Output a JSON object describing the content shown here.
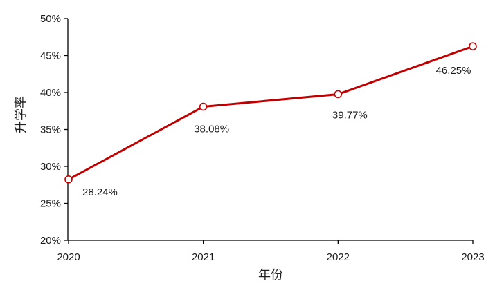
{
  "chart_data": {
    "type": "line",
    "categories": [
      "2020",
      "2021",
      "2022",
      "2023"
    ],
    "series": [
      {
        "values": [
          28.24,
          38.08,
          39.77,
          46.25
        ]
      }
    ],
    "data_labels": [
      "28.24%",
      "38.08%",
      "39.77%",
      "46.25%"
    ],
    "yticks": [
      20,
      25,
      30,
      35,
      40,
      45,
      50
    ],
    "ytick_labels": [
      "20%",
      "25%",
      "30%",
      "35%",
      "40%",
      "45%",
      "50%"
    ],
    "ylim": [
      20,
      50
    ],
    "xlabel": "年份",
    "ylabel": "升学率",
    "title": "",
    "grid": false,
    "line_color": "#c00000",
    "marker": "open-circle"
  }
}
